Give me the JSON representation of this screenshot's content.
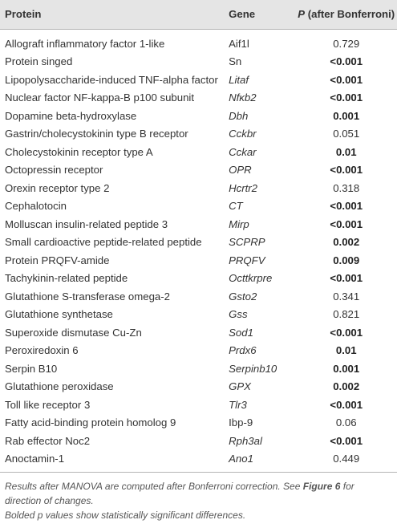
{
  "table": {
    "headers": {
      "protein": "Protein",
      "gene": "Gene",
      "p_prefix": "P",
      "p_suffix": " (after Bonferroni)"
    },
    "rows": [
      {
        "protein": "Allograft inflammatory factor 1-like",
        "gene": "Aif1l",
        "gene_italic": false,
        "p": "0.729",
        "significant": false
      },
      {
        "protein": "Protein singed",
        "gene": "Sn",
        "gene_italic": false,
        "p": "<0.001",
        "significant": true
      },
      {
        "protein": "Lipopolysaccharide-induced TNF-alpha factor",
        "gene": "Litaf",
        "gene_italic": true,
        "p": "<0.001",
        "significant": true
      },
      {
        "protein": "Nuclear factor NF-kappa-B p100 subunit",
        "gene": "Nfκb2",
        "gene_italic": true,
        "p": "<0.001",
        "significant": true
      },
      {
        "protein": "Dopamine beta-hydroxylase",
        "gene": "Dbh",
        "gene_italic": true,
        "p": "0.001",
        "significant": true
      },
      {
        "protein": "Gastrin/cholecystokinin type B receptor",
        "gene": "Cckbr",
        "gene_italic": true,
        "p": "0.051",
        "significant": false
      },
      {
        "protein": "Cholecystokinin receptor type A",
        "gene": "Cckar",
        "gene_italic": true,
        "p": "0.01",
        "significant": true
      },
      {
        "protein": "Octopressin receptor",
        "gene": "OPR",
        "gene_italic": true,
        "p": "<0.001",
        "significant": true
      },
      {
        "protein": "Orexin receptor type 2",
        "gene": "Hcrtr2",
        "gene_italic": true,
        "p": "0.318",
        "significant": false
      },
      {
        "protein": "Cephalotocin",
        "gene": "CT",
        "gene_italic": true,
        "p": "<0.001",
        "significant": true
      },
      {
        "protein": "Molluscan insulin-related peptide 3",
        "gene": "Mirp",
        "gene_italic": true,
        "p": "<0.001",
        "significant": true
      },
      {
        "protein": "Small cardioactive peptide-related peptide",
        "gene": "SCPRP",
        "gene_italic": true,
        "p": "0.002",
        "significant": true
      },
      {
        "protein": "Protein PRQFV-amide",
        "gene": "PRQFV",
        "gene_italic": true,
        "p": "0.009",
        "significant": true
      },
      {
        "protein": "Tachykinin-related peptide",
        "gene": "Octtkrpre",
        "gene_italic": true,
        "p": "<0.001",
        "significant": true
      },
      {
        "protein": "Glutathione S-transferase omega-2",
        "gene": "Gsto2",
        "gene_italic": true,
        "p": "0.341",
        "significant": false
      },
      {
        "protein": "Glutathione synthetase",
        "gene": "Gss",
        "gene_italic": true,
        "p": "0.821",
        "significant": false
      },
      {
        "protein": "Superoxide dismutase Cu-Zn",
        "gene": "Sod1",
        "gene_italic": true,
        "p": "<0.001",
        "significant": true
      },
      {
        "protein": "Peroxiredoxin 6",
        "gene": "Prdx6",
        "gene_italic": true,
        "p": "0.01",
        "significant": true
      },
      {
        "protein": "Serpin B10",
        "gene": "Serpinb10",
        "gene_italic": true,
        "p": "0.001",
        "significant": true
      },
      {
        "protein": "Glutathione peroxidase",
        "gene": "GPX",
        "gene_italic": true,
        "p": "0.002",
        "significant": true
      },
      {
        "protein": "Toll like receptor 3",
        "gene": "Tlr3",
        "gene_italic": true,
        "p": "<0.001",
        "significant": true
      },
      {
        "protein": "Fatty acid-binding protein homolog 9",
        "gene": "Ibp-9",
        "gene_italic": false,
        "p": "0.06",
        "significant": false
      },
      {
        "protein": "Rab effector Noc2",
        "gene": "Rph3al",
        "gene_italic": true,
        "p": "<0.001",
        "significant": true
      },
      {
        "protein": "Anoctamin-1",
        "gene": "Ano1",
        "gene_italic": true,
        "p": "0.449",
        "significant": false
      }
    ]
  },
  "footnote": {
    "line1_a": "Results after MANOVA are computed after Bonferroni correction. See ",
    "line1_ref": "Figure 6",
    "line1_b": " for direction of changes.",
    "line2": "Bolded p values show statistically significant differences."
  }
}
